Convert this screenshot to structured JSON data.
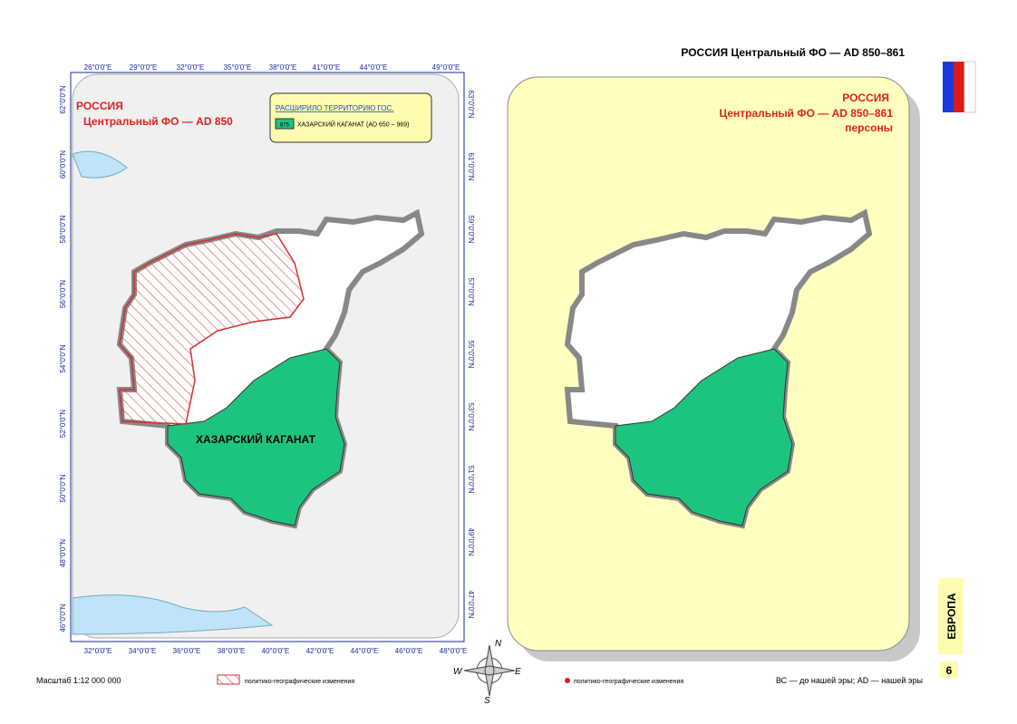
{
  "header": {
    "title": "РОССИЯ  Центральный ФО —  AD 850–861"
  },
  "left_map": {
    "title_line1": "РОССИЯ",
    "title_line2": "Центральный ФО —  AD 850",
    "legend": {
      "heading": "РАСШИРИЛО ТЕРРИТОРИЮ ГОС.",
      "swatch_number": "875",
      "entry": "ХАЗАРСКИЙ КАГАНАТ (AD 650 – 969)"
    },
    "region_label": "ХАЗАРСКИЙ КАГАНАТ",
    "top_ticks": [
      "26°0'0\"E",
      "29°0'0\"E",
      "32°0'0\"E",
      "35°0'0\"E",
      "38°0'0\"E",
      "41°0'0\"E",
      "44°0'0\"E",
      "49°0'0\"E"
    ],
    "bottom_ticks": [
      "32°0'0\"E",
      "34°0'0\"E",
      "36°0'0\"E",
      "38°0'0\"E",
      "40°0'0\"E",
      "42°0'0\"E",
      "44°0'0\"E",
      "46°0'0\"E",
      "48°0'0\"E"
    ],
    "left_ticks": [
      "62°0'0\"N",
      "60°0'0\"N",
      "58°0'0\"N",
      "56°0'0\"N",
      "54°0'0\"N",
      "52°0'0\"N",
      "50°0'0\"N",
      "48°0'0\"N",
      "46°0'0\"N"
    ],
    "right_ticks": [
      "63°0'0\"N",
      "61°0'0\"N",
      "59°0'0\"N",
      "57°0'0\"N",
      "55°0'0\"N",
      "53°0'0\"N",
      "51°0'0\"N",
      "49°0'0\"N",
      "47°0'0\"N"
    ]
  },
  "right_map": {
    "title_line1": "РОССИЯ",
    "title_line2": "Центральный ФО —  AD 850–861",
    "title_line3": "персоны"
  },
  "side_tab": "ЕВРОПА",
  "page_number": "6",
  "footer": {
    "scale": "Масштаб 1:12 000 000",
    "legend_left": "политико-географические изменения",
    "legend_right": "политико-географические изменения",
    "era_note": "ВС — до нашей эры; AD — нашей эры"
  },
  "compass": {
    "n": "N",
    "w": "W",
    "e": "E",
    "s": "S"
  }
}
